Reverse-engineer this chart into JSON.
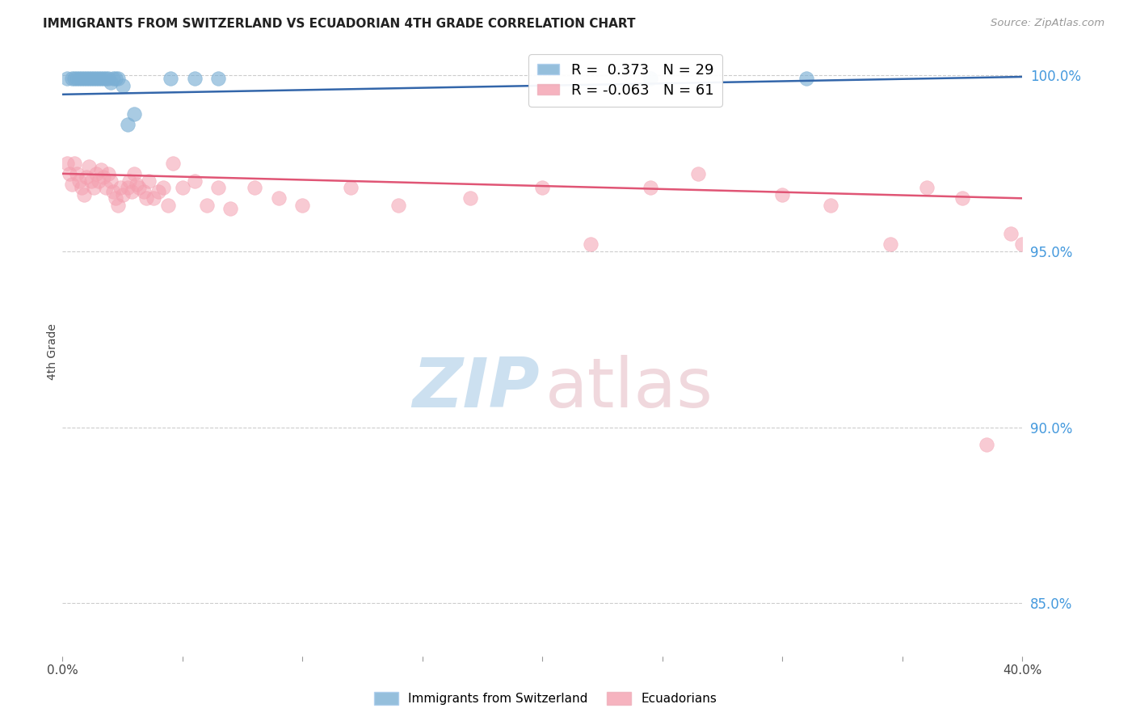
{
  "title": "IMMIGRANTS FROM SWITZERLAND VS ECUADORIAN 4TH GRADE CORRELATION CHART",
  "source": "Source: ZipAtlas.com",
  "ylabel": "4th Grade",
  "xlim": [
    0.0,
    0.4
  ],
  "ylim": [
    0.835,
    1.008
  ],
  "blue_r": 0.373,
  "blue_n": 29,
  "pink_r": -0.063,
  "pink_n": 61,
  "legend_label_blue": "Immigrants from Switzerland",
  "legend_label_pink": "Ecuadorians",
  "blue_color": "#7BAFD4",
  "pink_color": "#F4A0B0",
  "blue_line_color": "#3366AA",
  "pink_line_color": "#E05575",
  "yticks": [
    0.85,
    0.9,
    0.95,
    1.0
  ],
  "ytick_labels": [
    "85.0%",
    "90.0%",
    "95.0%",
    "100.0%"
  ],
  "blue_scatter_x": [
    0.002,
    0.004,
    0.005,
    0.006,
    0.007,
    0.008,
    0.009,
    0.01,
    0.011,
    0.012,
    0.013,
    0.014,
    0.015,
    0.016,
    0.017,
    0.018,
    0.019,
    0.02,
    0.021,
    0.022,
    0.023,
    0.025,
    0.027,
    0.03,
    0.045,
    0.055,
    0.065,
    0.245,
    0.31
  ],
  "blue_scatter_y": [
    0.999,
    0.999,
    0.999,
    0.999,
    0.999,
    0.999,
    0.999,
    0.999,
    0.999,
    0.999,
    0.999,
    0.999,
    0.999,
    0.999,
    0.999,
    0.999,
    0.999,
    0.998,
    0.999,
    0.999,
    0.999,
    0.997,
    0.986,
    0.989,
    0.999,
    0.999,
    0.999,
    0.999,
    0.999
  ],
  "pink_scatter_x": [
    0.002,
    0.003,
    0.004,
    0.005,
    0.006,
    0.007,
    0.008,
    0.009,
    0.01,
    0.011,
    0.012,
    0.013,
    0.014,
    0.015,
    0.016,
    0.017,
    0.018,
    0.019,
    0.02,
    0.021,
    0.022,
    0.023,
    0.024,
    0.025,
    0.027,
    0.028,
    0.029,
    0.03,
    0.031,
    0.032,
    0.034,
    0.035,
    0.036,
    0.038,
    0.04,
    0.042,
    0.044,
    0.046,
    0.05,
    0.055,
    0.06,
    0.065,
    0.07,
    0.08,
    0.09,
    0.1,
    0.12,
    0.14,
    0.17,
    0.2,
    0.22,
    0.245,
    0.265,
    0.3,
    0.32,
    0.345,
    0.36,
    0.375,
    0.385,
    0.395,
    0.4
  ],
  "pink_scatter_y": [
    0.975,
    0.972,
    0.969,
    0.975,
    0.972,
    0.97,
    0.968,
    0.966,
    0.971,
    0.974,
    0.97,
    0.968,
    0.972,
    0.97,
    0.973,
    0.971,
    0.968,
    0.972,
    0.97,
    0.967,
    0.965,
    0.963,
    0.968,
    0.966,
    0.968,
    0.97,
    0.967,
    0.972,
    0.969,
    0.968,
    0.967,
    0.965,
    0.97,
    0.965,
    0.967,
    0.968,
    0.963,
    0.975,
    0.968,
    0.97,
    0.963,
    0.968,
    0.962,
    0.968,
    0.965,
    0.963,
    0.968,
    0.963,
    0.965,
    0.968,
    0.952,
    0.968,
    0.972,
    0.966,
    0.963,
    0.952,
    0.968,
    0.965,
    0.895,
    0.955,
    0.952
  ],
  "blue_line_x": [
    0.0,
    0.4
  ],
  "blue_line_y": [
    0.9945,
    0.9995
  ],
  "pink_line_x": [
    0.0,
    0.4
  ],
  "pink_line_y": [
    0.972,
    0.965
  ]
}
